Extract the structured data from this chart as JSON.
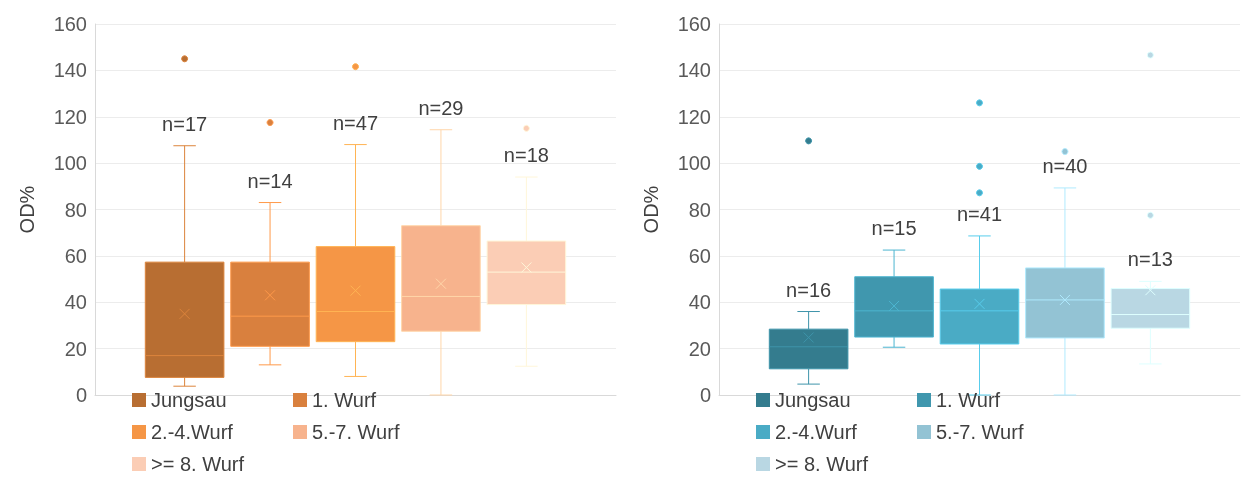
{
  "chart_data": [
    {
      "type": "box",
      "categories": [
        null
      ],
      "ylabel": "OD%",
      "ylim": [
        0,
        160
      ],
      "yticks": [
        0,
        20,
        40,
        60,
        80,
        100,
        120,
        140,
        160
      ],
      "grid": "y",
      "legend": "bottom",
      "series": [
        {
          "name": "Jungsau",
          "color": "#b86e32",
          "boxes": [
            {
              "low": 3.8,
              "q1": 7.6,
              "median": 17,
              "q3": 57.3,
              "high": 107.5,
              "mean": 35,
              "outliers": [
                145
              ]
            }
          ]
        },
        {
          "name": "1. Wurf",
          "color": "#d9803e",
          "boxes": [
            {
              "low": 13,
              "q1": 21,
              "median": 34,
              "q3": 57.3,
              "high": 83,
              "mean": 43,
              "outliers": [
                117.5
              ]
            }
          ]
        },
        {
          "name": "2.-4.Wurf",
          "color": "#f59646",
          "boxes": [
            {
              "low": 8,
              "q1": 23,
              "median": 36,
              "q3": 64,
              "high": 108,
              "mean": 45,
              "outliers": [
                141.6
              ]
            }
          ]
        },
        {
          "name": "5.-7. Wurf",
          "color": "#f7b38d",
          "boxes": [
            {
              "low": 0,
              "q1": 27.5,
              "median": 42.5,
              "q3": 73,
              "high": 114.4,
              "mean": 48
            }
          ]
        },
        {
          "name": ">= 8. Wurf",
          "color": "#fbcdb5",
          "boxes": [
            {
              "low": 12.4,
              "q1": 39,
              "median": 53,
              "q3": 66.4,
              "high": 94,
              "mean": 55,
              "outliers": [
                115
              ]
            }
          ]
        }
      ],
      "annotations": [
        "n=17",
        "n=14",
        "n=47",
        "n=29",
        "n=18"
      ]
    },
    {
      "type": "box",
      "categories": [
        null
      ],
      "ylabel": "OD%",
      "ylim": [
        0,
        160
      ],
      "yticks": [
        0,
        20,
        40,
        60,
        80,
        100,
        120,
        140,
        160
      ],
      "grid": "y",
      "legend": "bottom",
      "series": [
        {
          "name": "Jungsau",
          "color": "#347c8e",
          "boxes": [
            {
              "low": 4.7,
              "q1": 11.3,
              "median": 20.8,
              "q3": 28.4,
              "high": 36,
              "mean": 24.8,
              "outliers": [
                109.6
              ]
            }
          ]
        },
        {
          "name": "1. Wurf",
          "color": "#4097ae",
          "boxes": [
            {
              "low": 20.6,
              "q1": 25,
              "median": 36.3,
              "q3": 51,
              "high": 62.5,
              "mean": 38.4
            }
          ]
        },
        {
          "name": "2.-4.Wurf",
          "color": "#4aabc5",
          "boxes": [
            {
              "low": 0,
              "q1": 22,
              "median": 36.3,
              "q3": 45.7,
              "high": 68.6,
              "mean": 39.3,
              "outliers": [
                126,
                98.6,
                87.2
              ]
            }
          ]
        },
        {
          "name": "5.-7. Wurf",
          "color": "#93c3d4",
          "boxes": [
            {
              "low": 0,
              "q1": 24.6,
              "median": 41,
              "q3": 54.8,
              "high": 89.3,
              "mean": 41,
              "outliers": [
                105
              ]
            }
          ]
        },
        {
          "name": ">= 8. Wurf",
          "color": "#b9d7e3",
          "boxes": [
            {
              "low": 13.4,
              "q1": 28.8,
              "median": 34.7,
              "q3": 45.9,
              "high": 49,
              "mean": 45.2,
              "outliers": [
                146.6,
                77.5
              ]
            }
          ]
        }
      ],
      "annotations": [
        "n=16",
        "n=15",
        "n=41",
        "n=40",
        "n=13"
      ]
    }
  ]
}
